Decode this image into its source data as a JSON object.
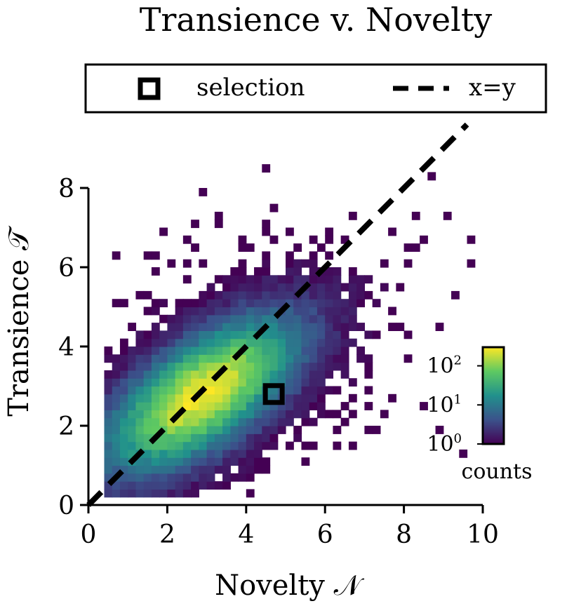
{
  "chart_data": {
    "type": "heatmap",
    "title": "Transience v. Novelty",
    "xlabel": "Novelty 𝒩",
    "ylabel": "Transience 𝒯",
    "xlim": [
      0,
      10
    ],
    "ylim": [
      0,
      8
    ],
    "xticks": [
      "0",
      "2",
      "4",
      "6",
      "8",
      "10"
    ],
    "yticks": [
      "0",
      "2",
      "4",
      "6",
      "8"
    ],
    "legend": {
      "placement": "top",
      "entries": [
        {
          "marker": "square",
          "label": "selection"
        },
        {
          "marker": "dashed-line",
          "label": "x=y"
        }
      ]
    },
    "colorbar": {
      "label": "counts",
      "scale": "log",
      "range": [
        1,
        300
      ],
      "ticks": [
        {
          "base": "10",
          "exp": "0",
          "value": 1
        },
        {
          "base": "10",
          "exp": "1",
          "value": 10
        },
        {
          "base": "10",
          "exp": "2",
          "value": 100
        }
      ],
      "colormap": [
        "#440154",
        "#3b528b",
        "#21918c",
        "#5ec962",
        "#fde725"
      ]
    },
    "distribution": {
      "peak": [
        2.9,
        2.8
      ],
      "peak_count": 300,
      "bin_width": 0.2
    },
    "selection": {
      "x": 4.7,
      "y": 2.8
    },
    "reference_line": {
      "label": "x=y",
      "slope": 1,
      "intercept": 0
    }
  }
}
